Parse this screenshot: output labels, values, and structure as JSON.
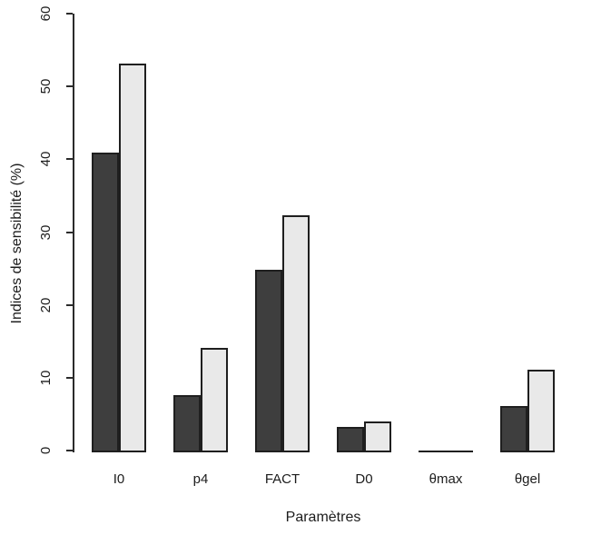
{
  "chart_data": {
    "type": "bar",
    "title": "",
    "categories": [
      "I0",
      "p4",
      "FACT",
      "D0",
      "θmax",
      "θgel"
    ],
    "series": [
      {
        "name": "dark-gray-bars",
        "color": "#3e3e3e",
        "values": [
          40.9,
          7.6,
          24.8,
          3.2,
          0,
          6.1
        ]
      },
      {
        "name": "light-gray-bars",
        "color": "#e9e9e9",
        "values": [
          53.1,
          14.1,
          32.3,
          4.0,
          0,
          11.1
        ]
      }
    ],
    "xlabel": "Paramètres",
    "ylabel": "Indices de sensibilité (%)",
    "ylim": [
      0,
      60
    ],
    "yticks": [
      0,
      10,
      20,
      30,
      40,
      50,
      60
    ],
    "grid": false,
    "legend": "none",
    "bar_border_color": "#1f1f1f",
    "axis_color": "#2b2b2b",
    "background_color": "#ffffff"
  }
}
